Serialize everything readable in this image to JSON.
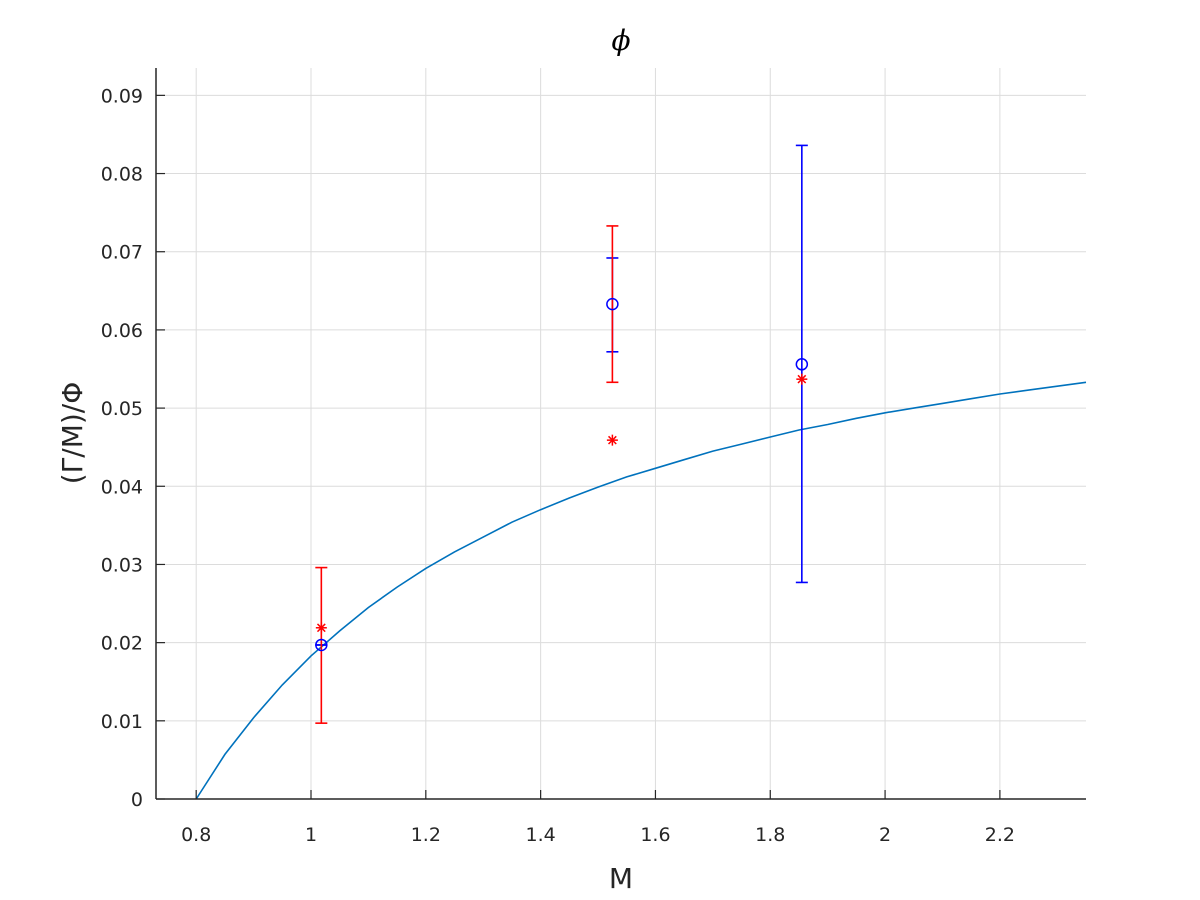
{
  "chart_data": {
    "type": "scatter",
    "title": "ϕ",
    "xlabel": "M",
    "ylabel": "(Γ/M)/Φ",
    "xlim": [
      0.73,
      2.35
    ],
    "ylim": [
      0,
      0.0935
    ],
    "grid": true,
    "x_ticks": [
      0.8,
      1,
      1.2,
      1.4,
      1.6,
      1.8,
      2,
      2.2
    ],
    "x_tick_labels": [
      "0.8",
      "1",
      "1.2",
      "1.4",
      "1.6",
      "1.8",
      "2",
      "2.2"
    ],
    "y_ticks": [
      0,
      0.01,
      0.02,
      0.03,
      0.04,
      0.05,
      0.06,
      0.07,
      0.08,
      0.09
    ],
    "y_tick_labels": [
      "0",
      "0.01",
      "0.02",
      "0.03",
      "0.04",
      "0.05",
      "0.06",
      "0.07",
      "0.08",
      "0.09"
    ],
    "series": [
      {
        "marker": "circle",
        "color": "#0000ff",
        "x": [
          1.018,
          1.525,
          1.855
        ],
        "y": [
          0.0197,
          0.0633,
          0.0556
        ],
        "err_low": [
          0.0197,
          0.0572,
          0.0277
        ],
        "err_high": [
          0.0197,
          0.0692,
          0.0836
        ]
      },
      {
        "marker": "asterisk",
        "color": "#ff0000",
        "x": [
          1.018,
          1.525,
          1.855
        ],
        "y": [
          0.0219,
          0.0459,
          0.0537
        ],
        "err_low": [
          0.0097,
          0.0533,
          null
        ],
        "err_high": [
          0.0296,
          0.0733,
          null
        ]
      },
      {
        "type": "line",
        "color": "#0072bd",
        "x": [
          0.8,
          0.85,
          0.9,
          0.95,
          1.0,
          1.05,
          1.1,
          1.15,
          1.2,
          1.25,
          1.3,
          1.35,
          1.4,
          1.45,
          1.5,
          1.55,
          1.6,
          1.65,
          1.7,
          1.75,
          1.8,
          1.85,
          1.9,
          1.95,
          2.0,
          2.05,
          2.1,
          2.15,
          2.2,
          2.25,
          2.3,
          2.35
        ],
        "y": [
          0.0,
          0.0057,
          0.0104,
          0.0146,
          0.0183,
          0.0215,
          0.0245,
          0.0271,
          0.0295,
          0.0316,
          0.0335,
          0.0354,
          0.037,
          0.0385,
          0.0399,
          0.0412,
          0.0423,
          0.0434,
          0.0445,
          0.0454,
          0.0463,
          0.0472,
          0.0479,
          0.0487,
          0.0494,
          0.05,
          0.0506,
          0.0512,
          0.0518,
          0.0523,
          0.0528,
          0.0533
        ]
      }
    ]
  }
}
